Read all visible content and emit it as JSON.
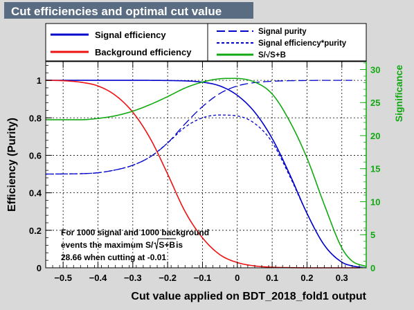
{
  "chart_data": {
    "type": "line",
    "title": "Cut efficiencies and optimal cut value",
    "xlabel": "Cut value applied on BDT_2018_fold1 output",
    "ylabel": "Efficiency (Purity)",
    "y2label": "Significance",
    "xlim": [
      -0.55,
      0.37
    ],
    "ylim": [
      0,
      1.1
    ],
    "y2lim": [
      0,
      31.2
    ],
    "x_ticks": [
      -0.5,
      -0.4,
      -0.3,
      -0.2,
      -0.1,
      0,
      0.1,
      0.2,
      0.3
    ],
    "x_tick_labels": [
      "−0.5",
      "−0.4",
      "−0.3",
      "−0.2",
      "−0.1",
      "0",
      "0.1",
      "0.2",
      "0.3"
    ],
    "y_ticks": [
      0,
      0.2,
      0.4,
      0.6,
      0.8,
      1
    ],
    "y_tick_labels": [
      "0",
      "0.2",
      "0.4",
      "0.6",
      "0.8",
      "1"
    ],
    "y2_ticks": [
      0,
      5,
      10,
      15,
      20,
      25,
      30
    ],
    "y2_tick_labels": [
      "0",
      "5",
      "10",
      "15",
      "20",
      "25",
      "30"
    ],
    "grid": true,
    "legend_placement": "top",
    "colors": {
      "signal": "#0000cc",
      "background": "#ee1111",
      "significance": "#11a811",
      "right_axis": "#11a811",
      "title_bg": "#5a6c82",
      "frame_bg": "#d9d9d9",
      "plot_bg": "#ffffff"
    },
    "series": [
      {
        "name": "Signal efficiency",
        "axis": "left",
        "style": "solid",
        "color": "#0000cc",
        "x": [
          -0.55,
          -0.5,
          -0.4,
          -0.3,
          -0.2,
          -0.1,
          -0.05,
          0,
          0.05,
          0.1,
          0.15,
          0.2,
          0.25,
          0.3,
          0.33,
          0.37
        ],
        "y": [
          1.0,
          1.0,
          1.0,
          1.0,
          0.999,
          0.99,
          0.97,
          0.92,
          0.83,
          0.69,
          0.5,
          0.29,
          0.12,
          0.03,
          0.01,
          0.0
        ]
      },
      {
        "name": "Background efficiency",
        "axis": "left",
        "style": "solid",
        "color": "#ee1111",
        "x": [
          -0.55,
          -0.5,
          -0.45,
          -0.4,
          -0.35,
          -0.3,
          -0.25,
          -0.2,
          -0.15,
          -0.1,
          -0.05,
          0,
          0.05,
          0.1,
          0.15,
          0.2,
          0.3,
          0.37
        ],
        "y": [
          1.0,
          0.998,
          0.99,
          0.97,
          0.92,
          0.83,
          0.69,
          0.5,
          0.3,
          0.16,
          0.07,
          0.028,
          0.01,
          0.003,
          0.001,
          0.0,
          0.0,
          0.0
        ]
      },
      {
        "name": "Signal purity",
        "axis": "left",
        "style": "longdash",
        "color": "#0000cc",
        "x": [
          -0.55,
          -0.45,
          -0.4,
          -0.35,
          -0.3,
          -0.25,
          -0.2,
          -0.15,
          -0.1,
          -0.05,
          0,
          0.05,
          0.1,
          0.15,
          0.2,
          0.25,
          0.3,
          0.33
        ],
        "y": [
          0.5,
          0.502,
          0.507,
          0.522,
          0.547,
          0.592,
          0.666,
          0.768,
          0.86,
          0.93,
          0.97,
          0.988,
          0.995,
          0.998,
          0.999,
          1.0,
          1.0,
          1.0
        ]
      },
      {
        "name": "Signal efficiency*purity",
        "axis": "left",
        "style": "dash",
        "color": "#0000cc",
        "x": [
          -0.55,
          -0.45,
          -0.4,
          -0.35,
          -0.3,
          -0.25,
          -0.2,
          -0.15,
          -0.1,
          -0.05,
          0,
          0.05,
          0.1,
          0.15,
          0.2,
          0.25,
          0.3,
          0.33,
          0.37
        ],
        "y": [
          0.5,
          0.502,
          0.507,
          0.522,
          0.547,
          0.592,
          0.666,
          0.75,
          0.8,
          0.815,
          0.81,
          0.77,
          0.67,
          0.49,
          0.29,
          0.12,
          0.03,
          0.01,
          0.0
        ]
      },
      {
        "name": "S/√S+B",
        "axis": "right",
        "style": "solid",
        "color": "#11a811",
        "x": [
          -0.55,
          -0.45,
          -0.4,
          -0.35,
          -0.3,
          -0.25,
          -0.2,
          -0.15,
          -0.1,
          -0.05,
          -0.01,
          0.05,
          0.1,
          0.15,
          0.2,
          0.25,
          0.3,
          0.33,
          0.37
        ],
        "y": [
          22.4,
          22.4,
          22.6,
          23.0,
          23.7,
          24.7,
          25.9,
          27.2,
          28.1,
          28.6,
          28.66,
          28.1,
          26.3,
          22.2,
          16.6,
          9.5,
          3.0,
          1.0,
          0.2
        ]
      }
    ],
    "legend": {
      "left": [
        "Signal efficiency",
        "Background efficiency"
      ],
      "right": [
        "Signal purity",
        "Signal efficiency*purity",
        "S/√S+B"
      ]
    },
    "annotation": {
      "line1": "For 1000 signal and 1000 background",
      "line2_prefix": "events the maximum S/",
      "line2_radicand": "S+B",
      "line2_suffix": " is",
      "line3": "28.66 when cutting at -0.01"
    }
  }
}
